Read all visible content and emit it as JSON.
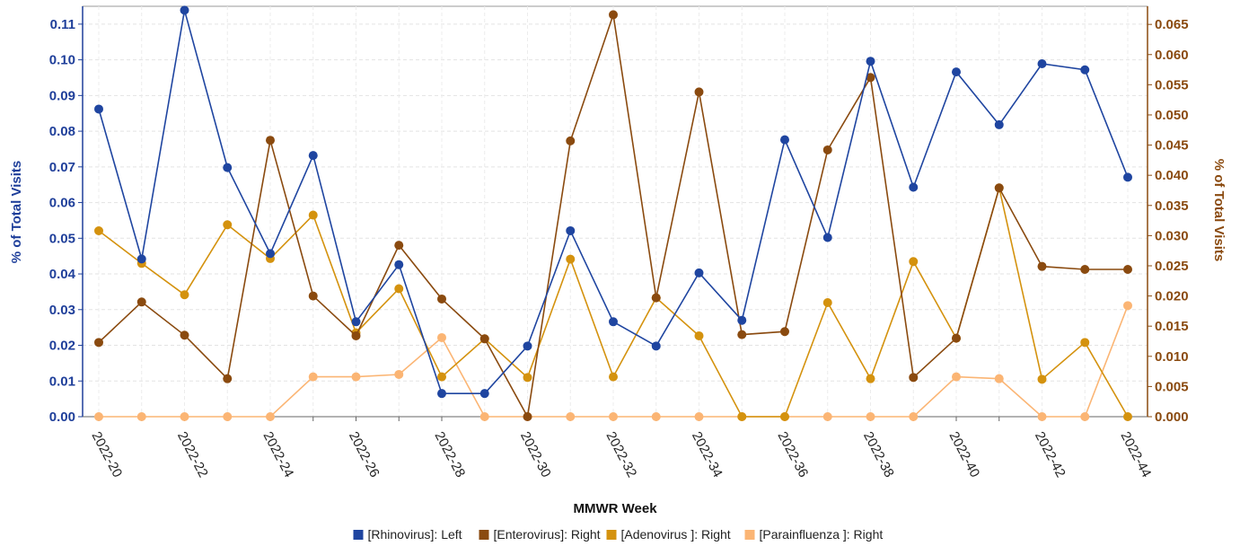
{
  "chart_data": {
    "type": "line",
    "xlabel": "MMWR Week",
    "ylabel_left": "% of Total Visits",
    "ylabel_right": "% of Total Visits",
    "x": [
      "2022-20",
      "2022-21",
      "2022-22",
      "2022-23",
      "2022-24",
      "2022-25",
      "2022-26",
      "2022-27",
      "2022-28",
      "2022-29",
      "2022-30",
      "2022-31",
      "2022-32",
      "2022-33",
      "2022-34",
      "2022-35",
      "2022-36",
      "2022-37",
      "2022-38",
      "2022-39",
      "2022-40",
      "2022-41",
      "2022-42",
      "2022-43",
      "2022-44"
    ],
    "x_tick_labels": [
      "2022-20",
      "2022-22",
      "2022-24",
      "2022-26",
      "2022-28",
      "2022-30",
      "2022-32",
      "2022-34",
      "2022-36",
      "2022-38",
      "2022-40",
      "2022-42",
      "2022-44"
    ],
    "ylim_left": [
      0,
      0.115
    ],
    "ylim_right": [
      0,
      0.068
    ],
    "y_ticks_left": [
      "0.00",
      "0.01",
      "0.02",
      "0.03",
      "0.04",
      "0.05",
      "0.06",
      "0.07",
      "0.08",
      "0.09",
      "0.10",
      "0.11"
    ],
    "y_ticks_right": [
      "0.000",
      "0.005",
      "0.010",
      "0.015",
      "0.020",
      "0.025",
      "0.030",
      "0.035",
      "0.040",
      "0.045",
      "0.050",
      "0.055",
      "0.060",
      "0.065"
    ],
    "grid": true,
    "legend_position": "bottom-center",
    "series": [
      {
        "name": "[Rhinovirus]: Left",
        "axis": "left",
        "color": "#1f45a0",
        "values": [
          0.0862,
          0.0442,
          0.1139,
          0.0698,
          0.0457,
          0.0732,
          0.0266,
          0.0426,
          0.0065,
          0.0065,
          0.0198,
          0.0521,
          0.0266,
          0.0198,
          0.0403,
          0.027,
          0.0776,
          0.0502,
          0.0996,
          0.0643,
          0.0966,
          0.0818,
          0.0989,
          0.0972,
          0.0671
        ]
      },
      {
        "name": "[Enterovirus]: Right",
        "axis": "right",
        "color": "#8a4a0f",
        "values": [
          0.0123,
          0.019,
          0.0135,
          0.0063,
          0.0458,
          0.02,
          0.0134,
          0.0284,
          0.0195,
          0.0129,
          0.0,
          0.0457,
          0.0666,
          0.0197,
          0.0538,
          0.0136,
          0.0141,
          0.0442,
          0.0562,
          0.0065,
          0.013,
          0.0379,
          0.0249,
          0.0244,
          0.0244
        ]
      },
      {
        "name": "[Adenovirus ]: Right",
        "axis": "right",
        "color": "#d4920e",
        "values": [
          0.0308,
          0.0254,
          0.0202,
          0.0318,
          0.0262,
          0.0334,
          0.0139,
          0.0212,
          0.0066,
          0.0129,
          0.0065,
          0.0261,
          0.0066,
          0.0197,
          0.0134,
          0.0,
          0.0,
          0.0189,
          0.0063,
          0.0257,
          0.013,
          0.0379,
          0.0062,
          0.0123,
          0.0
        ]
      },
      {
        "name": "[Parainfluenza ]: Right",
        "axis": "right",
        "color": "#fbb574",
        "values": [
          0,
          0,
          0,
          0,
          0,
          0.0066,
          0.0066,
          0.007,
          0.0131,
          0,
          0,
          0,
          0,
          0,
          0,
          0,
          0,
          0,
          0,
          0,
          0.0066,
          0.0063,
          0,
          0,
          0.0184
        ]
      }
    ]
  }
}
